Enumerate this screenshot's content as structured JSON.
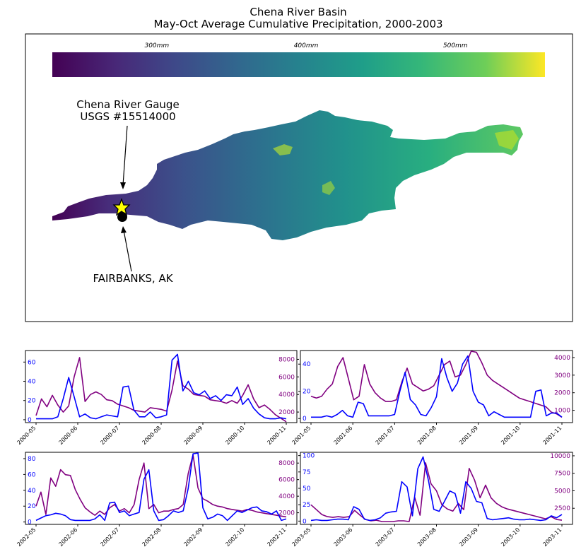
{
  "figure": {
    "title_line1": "Chena River Basin",
    "title_line2": "May-Oct Average Cumulative Precipitation, 2000-2003"
  },
  "map": {
    "colorbar": {
      "colormap": "viridis",
      "range_mm": [
        230,
        560
      ],
      "ticks": [
        {
          "value": 300,
          "label": "300mm"
        },
        {
          "value": 400,
          "label": "400mm"
        },
        {
          "value": 500,
          "label": "500mm"
        }
      ]
    },
    "gauge_label_line1": "Chena River Gauge",
    "gauge_label_line2": "USGS #15514000",
    "city_label": "FAIRBANKS, AK",
    "gauge_marker": "star-icon",
    "gauge_marker_color": "#ffff00",
    "city_marker": "filled-circle-icon"
  },
  "chart_data": [
    {
      "type": "line",
      "year": "2000",
      "x_ticks": [
        "2000-05",
        "2000-06",
        "2000-07",
        "2000-08",
        "2000-09",
        "2000-10",
        "2000-11"
      ],
      "left_ticks": [
        "0",
        "20",
        "40",
        "60"
      ],
      "left_ylim": [
        -3,
        72
      ],
      "right_ticks": [
        "2000",
        "4000",
        "6000",
        "8000"
      ],
      "right_ylim": [
        800,
        9000
      ],
      "series": [
        {
          "axis": "left",
          "color": "#0000ff",
          "values": [
            1,
            1,
            1,
            1,
            3,
            22,
            44,
            24,
            3,
            6,
            2,
            1,
            3,
            5,
            4,
            3,
            34,
            35,
            10,
            3,
            3,
            8,
            2,
            3,
            5,
            62,
            68,
            30,
            40,
            28,
            26,
            30,
            22,
            25,
            20,
            26,
            25,
            34,
            16,
            22,
            12,
            6,
            2,
            1,
            1,
            2,
            1
          ]
        },
        {
          "axis": "right",
          "color": "#800080",
          "values": [
            1600,
            3500,
            2600,
            3900,
            2800,
            2000,
            2700,
            6000,
            8200,
            3200,
            4000,
            4300,
            4000,
            3400,
            3300,
            2900,
            2700,
            2500,
            2200,
            2100,
            2000,
            2500,
            2400,
            2300,
            2100,
            4500,
            7800,
            5000,
            4600,
            4000,
            3900,
            3800,
            3400,
            3300,
            3200,
            3000,
            3300,
            3000,
            3900,
            5100,
            3500,
            2500,
            2800,
            2300,
            1700,
            1300,
            900
          ]
        }
      ]
    },
    {
      "type": "line",
      "year": "2001",
      "x_ticks": [
        "2001-05",
        "2001-06",
        "2001-07",
        "2001-08",
        "2001-09",
        "2001-10",
        "2001-11"
      ],
      "left_ticks": [
        "0",
        "20",
        "40"
      ],
      "left_ylim": [
        -3,
        50
      ],
      "right_ticks": [
        "1000",
        "2000",
        "3000",
        "4000"
      ],
      "right_ylim": [
        300,
        4400
      ],
      "series": [
        {
          "axis": "left",
          "color": "#0000ff",
          "values": [
            1,
            1,
            1,
            2,
            1,
            3,
            6,
            2,
            1,
            12,
            11,
            2,
            2,
            2,
            2,
            2,
            3,
            20,
            34,
            14,
            10,
            3,
            2,
            8,
            16,
            44,
            30,
            20,
            26,
            40,
            46,
            20,
            12,
            10,
            2,
            5,
            3,
            1,
            1,
            1,
            1,
            1,
            1,
            20,
            21,
            2,
            4,
            4,
            1
          ]
        },
        {
          "axis": "right",
          "color": "#800080",
          "values": [
            1800,
            1700,
            1800,
            2200,
            2500,
            3500,
            4000,
            2800,
            1600,
            1800,
            3600,
            2500,
            2000,
            1700,
            1500,
            1500,
            1600,
            2600,
            3400,
            2500,
            2300,
            2100,
            2200,
            2400,
            3000,
            3600,
            3800,
            2900,
            3000,
            3600,
            4400,
            4300,
            3700,
            3000,
            2700,
            2500,
            2300,
            2100,
            1900,
            1700,
            1600,
            1500,
            1400,
            1300,
            1200,
            900,
            800,
            600
          ]
        }
      ]
    },
    {
      "type": "line",
      "year": "2002",
      "x_ticks": [
        "2002-05",
        "2002-06",
        "2002-07",
        "2002-08",
        "2002-09",
        "2002-10",
        "2002-11"
      ],
      "left_ticks": [
        "0",
        "20",
        "40",
        "60",
        "80"
      ],
      "left_ylim": [
        -3,
        88
      ],
      "right_ticks": [
        "2000",
        "4000",
        "6000",
        "8000"
      ],
      "right_ylim": [
        600,
        9300
      ],
      "series": [
        {
          "axis": "left",
          "color": "#0000ff",
          "values": [
            2,
            5,
            8,
            9,
            11,
            10,
            8,
            3,
            2,
            2,
            2,
            2,
            4,
            9,
            2,
            24,
            25,
            12,
            14,
            8,
            10,
            12,
            54,
            66,
            14,
            2,
            3,
            8,
            14,
            12,
            14,
            42,
            86,
            88,
            18,
            4,
            6,
            10,
            8,
            2,
            8,
            14,
            12,
            15,
            18,
            19,
            14,
            13,
            10,
            14,
            2,
            4
          ]
        },
        {
          "axis": "right",
          "color": "#800080",
          "values": [
            2800,
            4500,
            1800,
            6200,
            5200,
            7200,
            6600,
            6500,
            4800,
            3600,
            2600,
            2100,
            1700,
            2200,
            1800,
            2600,
            3000,
            2200,
            2500,
            2000,
            3000,
            6000,
            8000,
            2500,
            3000,
            2000,
            2200,
            2200,
            2400,
            2500,
            3000,
            6700,
            9000,
            5000,
            3700,
            3400,
            3000,
            2800,
            2700,
            2500,
            2400,
            2300,
            2200,
            2400,
            2300,
            2100,
            2000,
            1900,
            1800,
            1700,
            1600,
            1500
          ]
        }
      ]
    },
    {
      "type": "line",
      "year": "2003",
      "x_ticks": [
        "2003-05",
        "2003-06",
        "2003-07",
        "2003-08",
        "2003-09",
        "2003-10",
        "2003-11"
      ],
      "left_ticks": [
        "0",
        "25",
        "50",
        "75",
        "100"
      ],
      "left_ylim": [
        -5,
        105
      ],
      "right_ticks": [
        "2500",
        "5000",
        "7500",
        "10000"
      ],
      "right_ylim": [
        200,
        10500
      ],
      "series": [
        {
          "axis": "left",
          "color": "#0000ff",
          "values": [
            1,
            2,
            1,
            1,
            2,
            3,
            3,
            2,
            22,
            18,
            3,
            1,
            2,
            5,
            12,
            14,
            15,
            60,
            52,
            8,
            80,
            98,
            62,
            18,
            15,
            30,
            46,
            42,
            12,
            60,
            50,
            30,
            28,
            4,
            2,
            3,
            4,
            5,
            3,
            2,
            2,
            3,
            2,
            1,
            2,
            8,
            5,
            10
          ]
        },
        {
          "axis": "right",
          "color": "#800080",
          "values": [
            3000,
            2300,
            1600,
            1300,
            1200,
            1300,
            1200,
            1300,
            2200,
            1500,
            900,
            700,
            800,
            600,
            600,
            600,
            700,
            700,
            600,
            4100,
            1500,
            9000,
            6000,
            5000,
            3000,
            2400,
            2100,
            3200,
            2300,
            8200,
            6500,
            4000,
            5800,
            4000,
            3200,
            2700,
            2400,
            2200,
            2000,
            1800,
            1600,
            1400,
            1200,
            1000,
            1300,
            900,
            800
          ]
        }
      ]
    }
  ]
}
